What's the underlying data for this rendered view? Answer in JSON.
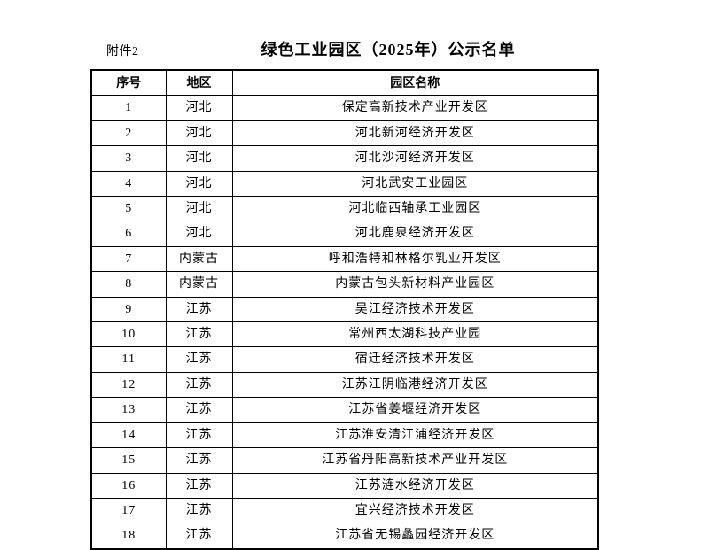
{
  "page": {
    "attachment_label": "附件2",
    "title": "绿色工业园区（2025年）公示名单"
  },
  "table": {
    "headers": [
      "序号",
      "地区",
      "园区名称"
    ],
    "rows": [
      [
        "1",
        "河北",
        "保定高新技术产业开发区"
      ],
      [
        "2",
        "河北",
        "河北新河经济开发区"
      ],
      [
        "3",
        "河北",
        "河北沙河经济开发区"
      ],
      [
        "4",
        "河北",
        "河北武安工业园区"
      ],
      [
        "5",
        "河北",
        "河北临西轴承工业园区"
      ],
      [
        "6",
        "河北",
        "河北鹿泉经济开发区"
      ],
      [
        "7",
        "内蒙古",
        "呼和浩特和林格尔乳业开发区"
      ],
      [
        "8",
        "内蒙古",
        "内蒙古包头新材料产业园区"
      ],
      [
        "9",
        "江苏",
        "吴江经济技术开发区"
      ],
      [
        "10",
        "江苏",
        "常州西太湖科技产业园"
      ],
      [
        "11",
        "江苏",
        "宿迁经济技术开发区"
      ],
      [
        "12",
        "江苏",
        "江苏江阴临港经济开发区"
      ],
      [
        "13",
        "江苏",
        "江苏省姜堰经济开发区"
      ],
      [
        "14",
        "江苏",
        "江苏淮安清江浦经济开发区"
      ],
      [
        "15",
        "江苏",
        "江苏省丹阳高新技术产业开发区"
      ],
      [
        "16",
        "江苏",
        "江苏涟水经济开发区"
      ],
      [
        "17",
        "江苏",
        "宜兴经济技术开发区"
      ],
      [
        "18",
        "江苏",
        "江苏省无锡蠡园经济开发区"
      ]
    ]
  },
  "colors": {
    "text": "#000000",
    "border": "#000000",
    "background": "#ffffff"
  }
}
